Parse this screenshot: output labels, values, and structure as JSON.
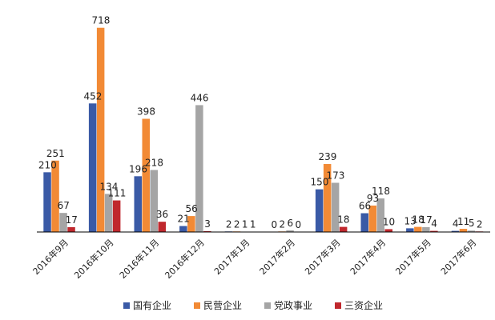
{
  "chart_data": {
    "type": "bar",
    "categories": [
      "2016年9月",
      "2016年10月",
      "2016年11月",
      "2016年12月",
      "2017年1月",
      "2017年2月",
      "2017年3月",
      "2017年4月",
      "2017年5月",
      "2017年6月"
    ],
    "series": [
      {
        "name": "国有企业",
        "color": "#3A5AA6",
        "values": [
          210,
          452,
          196,
          21,
          2,
          0,
          150,
          66,
          13,
          4
        ]
      },
      {
        "name": "民营企业",
        "color": "#F28A35",
        "values": [
          251,
          718,
          398,
          56,
          2,
          2,
          239,
          93,
          18,
          11
        ]
      },
      {
        "name": "党政事业",
        "color": "#A5A5A5",
        "values": [
          67,
          134,
          218,
          446,
          1,
          6,
          173,
          118,
          17,
          5
        ]
      },
      {
        "name": "三资企业",
        "color": "#C0282D",
        "values": [
          17,
          111,
          36,
          3,
          1,
          0,
          18,
          10,
          4,
          2
        ]
      }
    ],
    "ylim": [
      0,
      720
    ],
    "grid": false,
    "legend_position": "bottom"
  }
}
